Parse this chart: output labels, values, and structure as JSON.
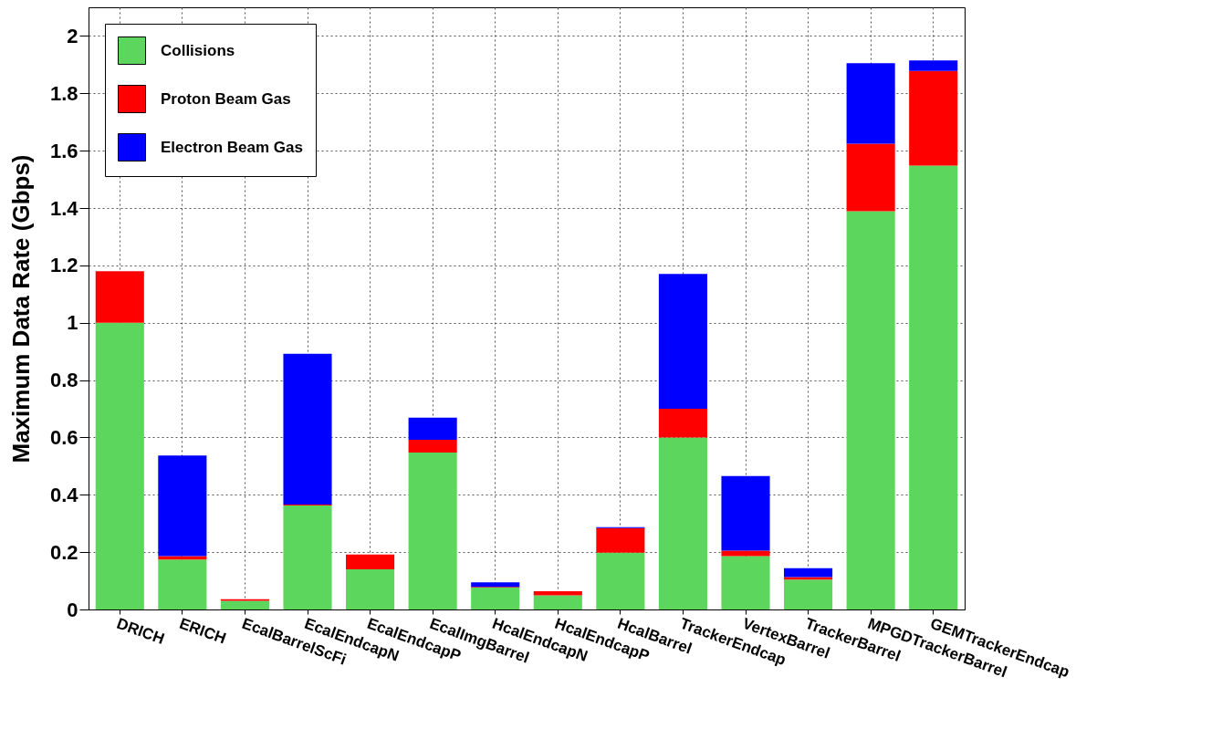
{
  "chart_data": {
    "type": "bar",
    "ylabel": "Maximum Data Rate (Gbps)",
    "stacked": true,
    "legend": "top left",
    "grid": true,
    "categories": [
      "DRICH",
      "ERICH",
      "EcalBarrelScFi",
      "EcalEndcapN",
      "EcalEndcapP",
      "EcalImgBarrel",
      "HcalEndcapN",
      "HcalEndcapP",
      "HcalBarrel",
      "TrackerEndcap",
      "VertexBarrel",
      "TrackerBarrel",
      "MPGDTrackerBarrel",
      "GEMTrackerEndcap"
    ],
    "series": [
      {
        "name": "Collisions",
        "color": "#5cd65c",
        "values": [
          1.0,
          0.174,
          0.03,
          0.363,
          0.14,
          0.547,
          0.076,
          0.049,
          0.198,
          0.6,
          0.186,
          0.104,
          1.389,
          1.548
        ]
      },
      {
        "name": "Proton Beam Gas",
        "color": "#ff0000",
        "values": [
          0.18,
          0.012,
          0.006,
          0.003,
          0.052,
          0.045,
          0.003,
          0.015,
          0.086,
          0.1,
          0.019,
          0.009,
          0.235,
          0.33
        ]
      },
      {
        "name": "Electron Beam Gas",
        "color": "#0000ff",
        "values": [
          null,
          0.351,
          null,
          0.526,
          null,
          0.077,
          0.016,
          null,
          0.003,
          0.47,
          0.26,
          0.031,
          0.281,
          0.037
        ]
      }
    ],
    "ylim": [
      0,
      2.1
    ],
    "yticks": [
      0,
      0.2,
      0.4,
      0.6,
      0.8,
      1,
      1.2,
      1.4,
      1.6,
      1.8,
      2
    ]
  }
}
